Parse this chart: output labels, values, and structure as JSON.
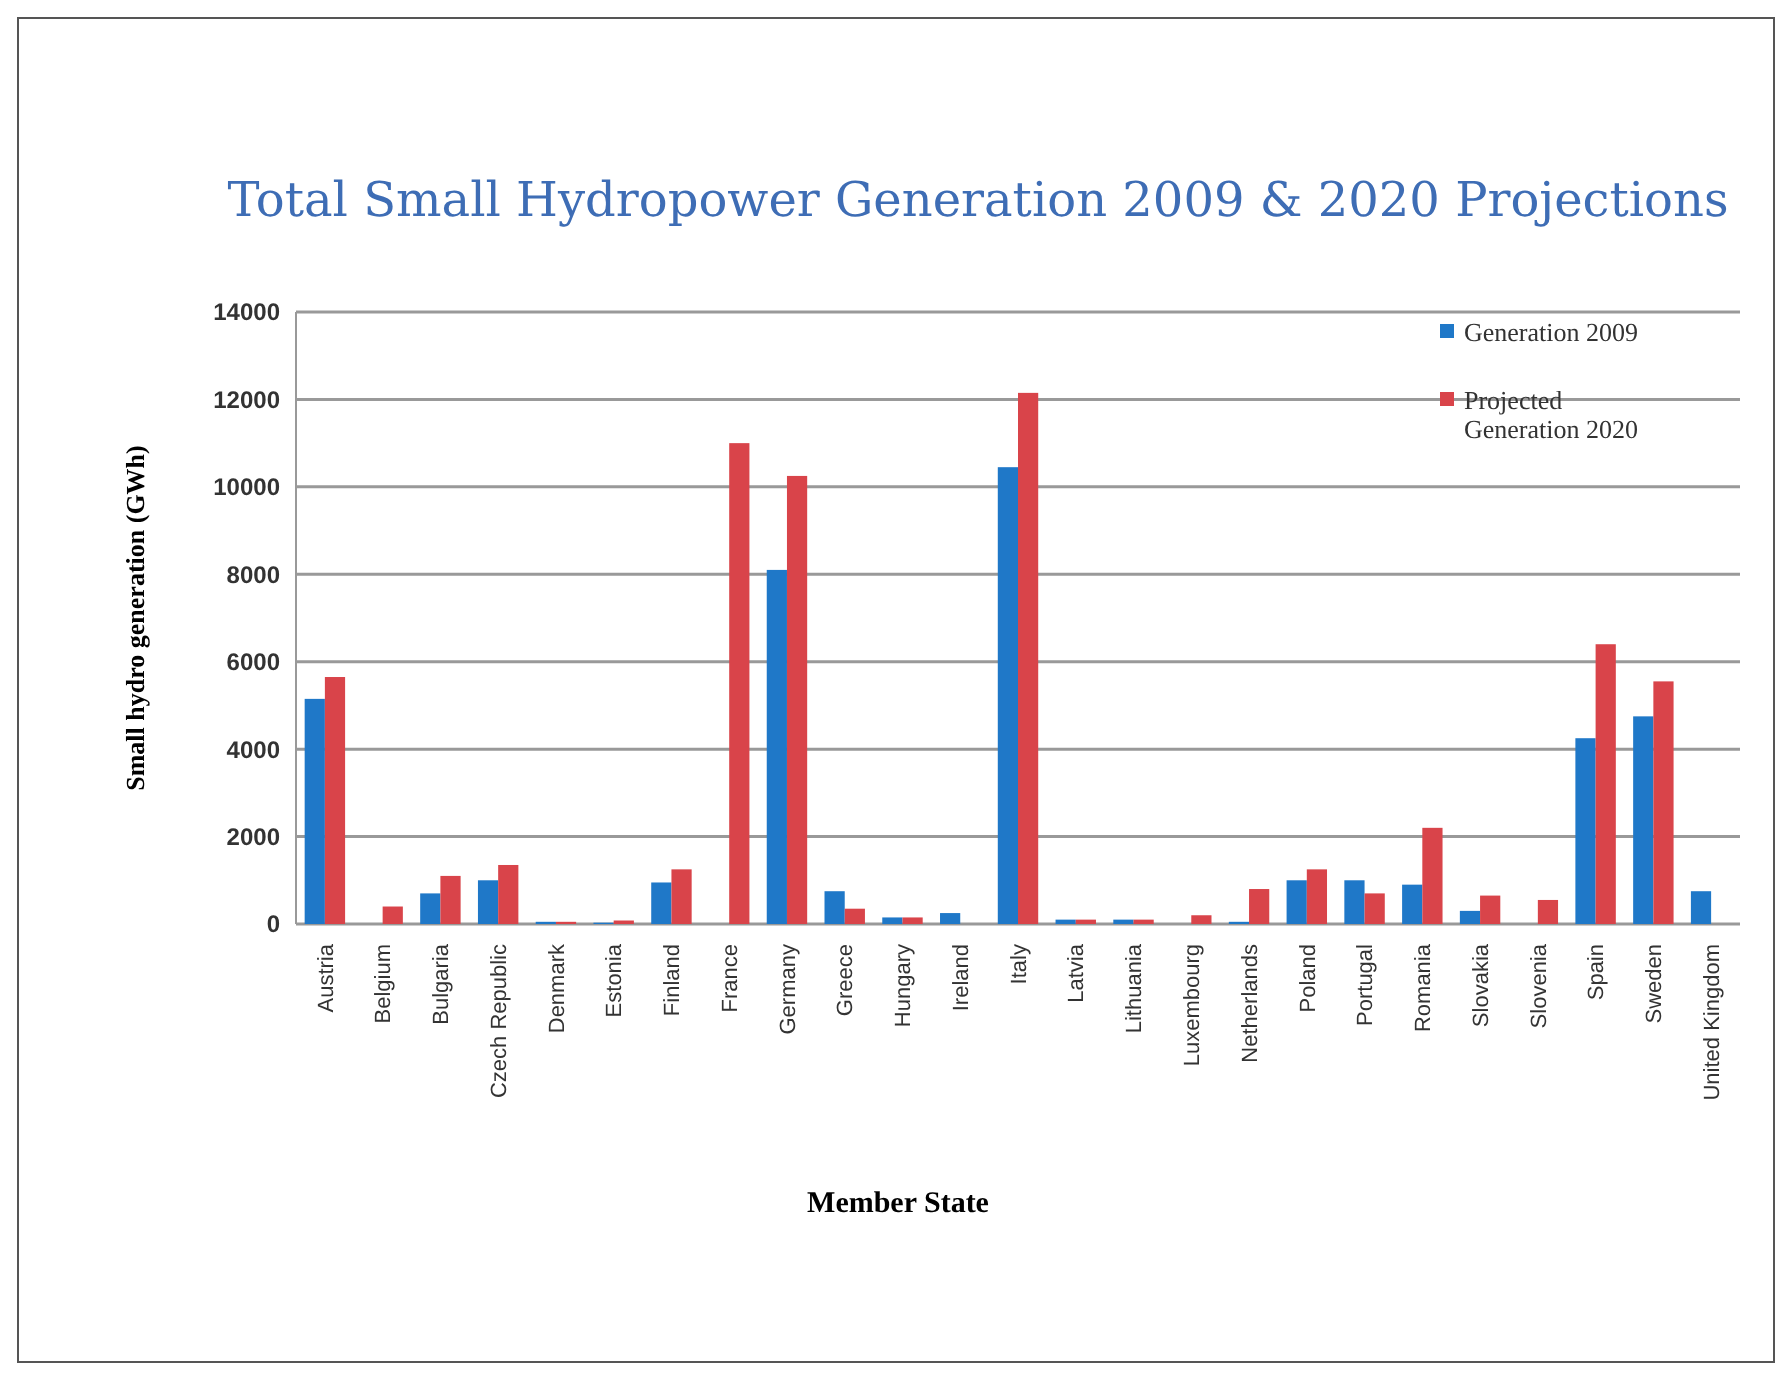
{
  "chart_data": {
    "type": "bar",
    "title": "Total Small Hydropower Generation 2009 & 2020 Projections",
    "xlabel": "Member State",
    "ylabel": "Small hydro generation (GWh)",
    "categories": [
      "Austria",
      "Belgium",
      "Bulgaria",
      "Czech Republic",
      "Denmark",
      "Estonia",
      "Finland",
      "France",
      "Germany",
      "Greece",
      "Hungary",
      "Ireland",
      "Italy",
      "Latvia",
      "Lithuania",
      "Luxembourg",
      "Netherlands",
      "Poland",
      "Portugal",
      "Romania",
      "Slovakia",
      "Slovenia",
      "Spain",
      "Sweden",
      "United Kingdom"
    ],
    "series": [
      {
        "name": "Generation 2009",
        "color": "#1f78c8",
        "values": [
          5150,
          null,
          700,
          1000,
          50,
          30,
          950,
          null,
          8100,
          750,
          150,
          250,
          10450,
          100,
          100,
          null,
          50,
          1000,
          1000,
          900,
          300,
          null,
          4250,
          4750,
          750
        ]
      },
      {
        "name": "Projected Generation 2020",
        "color": "#d9444a",
        "values": [
          5650,
          400,
          1100,
          1350,
          50,
          80,
          1250,
          11000,
          10250,
          350,
          150,
          null,
          12150,
          100,
          100,
          200,
          800,
          1250,
          700,
          2200,
          650,
          550,
          6400,
          5550,
          null
        ]
      }
    ],
    "ylim": [
      0,
      14000
    ],
    "yticks": [
      0,
      2000,
      4000,
      6000,
      8000,
      10000,
      12000,
      14000
    ],
    "grid": "y",
    "legend": "top right"
  }
}
